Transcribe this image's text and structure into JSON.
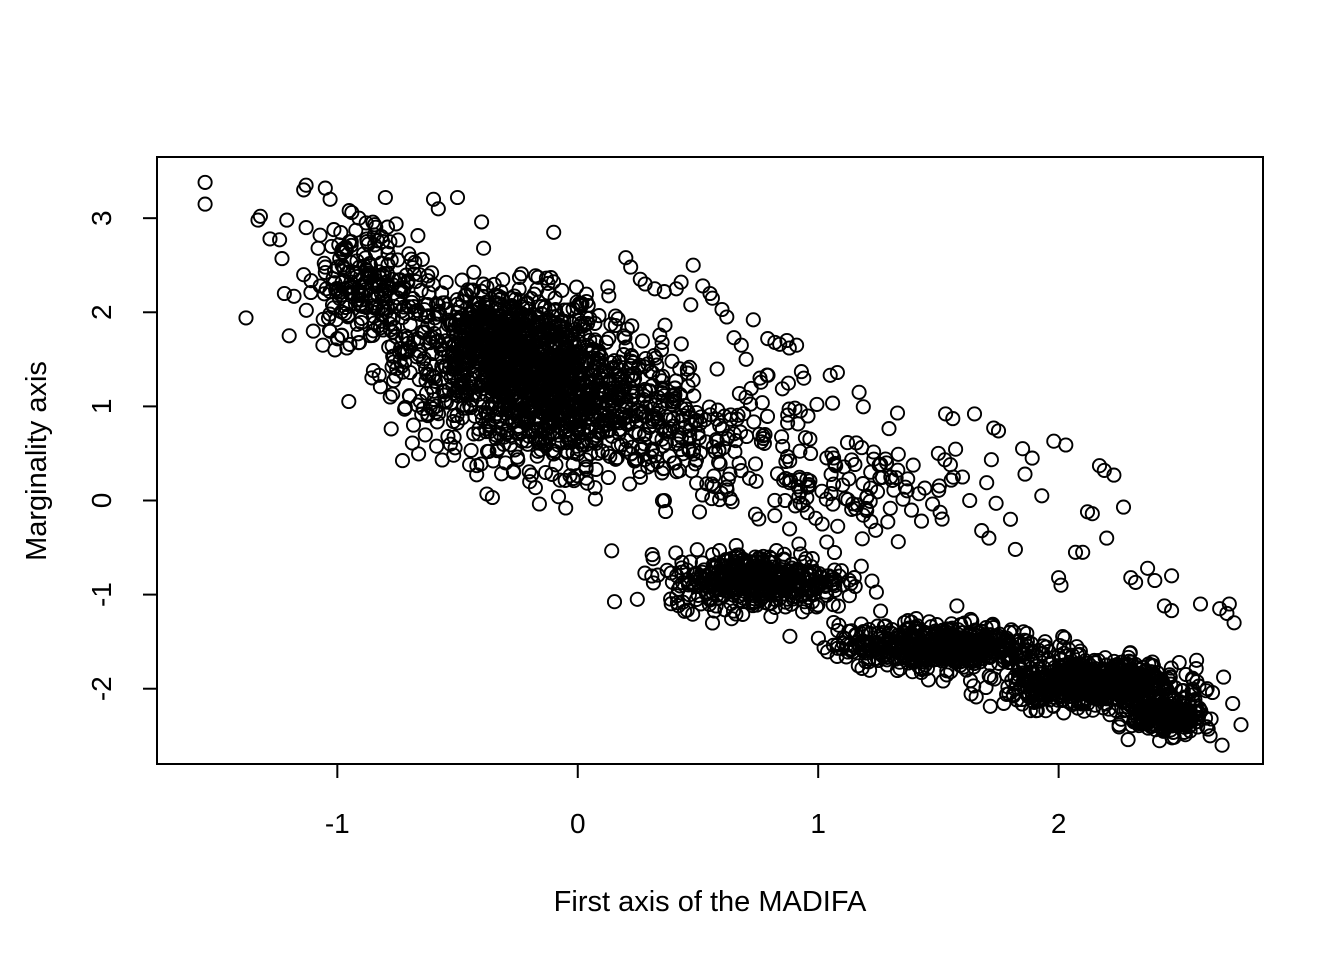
{
  "chart_data": {
    "type": "scatter",
    "title": "",
    "xlabel": "First axis of the MADIFA",
    "ylabel": "Marginality axis",
    "xlim": [
      -1.75,
      2.85
    ],
    "ylim": [
      -2.8,
      3.65
    ],
    "xticks": [
      -1,
      0,
      1,
      2
    ],
    "xtick_labels": [
      "-1",
      "0",
      "1",
      "2"
    ],
    "yticks": [
      -2,
      -1,
      0,
      1,
      2,
      3
    ],
    "ytick_labels": [
      "-2",
      "-1",
      "0",
      "1",
      "2",
      "3"
    ],
    "grid": false,
    "legend": "none",
    "marker": "open-circle",
    "color": "#000000",
    "points": [
      [
        -1.55,
        3.38
      ],
      [
        -1.55,
        3.15
      ],
      [
        -1.38,
        1.94
      ],
      [
        -1.33,
        2.98
      ],
      [
        -1.32,
        3.02
      ],
      [
        -1.28,
        2.78
      ],
      [
        -1.24,
        2.77
      ],
      [
        -1.23,
        2.57
      ],
      [
        -1.22,
        2.2
      ],
      [
        -1.21,
        2.98
      ],
      [
        -1.2,
        1.75
      ],
      [
        -1.18,
        2.17
      ],
      [
        -1.14,
        3.3
      ],
      [
        -1.13,
        3.35
      ],
      [
        -1.13,
        2.9
      ],
      [
        -1.11,
        2.21
      ],
      [
        -1.1,
        1.8
      ],
      [
        -1.08,
        2.68
      ],
      [
        -1.06,
        1.65
      ],
      [
        -1.05,
        2.48
      ],
      [
        -1.05,
        3.32
      ],
      [
        -1.03,
        2.22
      ],
      [
        -1.03,
        3.2
      ],
      [
        -1.02,
        2.08
      ],
      [
        -1.01,
        1.6
      ],
      [
        -1.0,
        1.72
      ],
      [
        -0.98,
        2.5
      ],
      [
        -0.96,
        1.62
      ],
      [
        -0.95,
        2.75
      ],
      [
        -0.94,
        3.06
      ],
      [
        -0.91,
        3.0
      ],
      [
        -0.88,
        2.95
      ],
      [
        -0.85,
        1.38
      ],
      [
        -0.8,
        3.22
      ],
      [
        -0.78,
        1.1
      ],
      [
        -0.72,
        0.97
      ],
      [
        -0.6,
        3.2
      ],
      [
        -0.58,
        3.1
      ],
      [
        -0.54,
        0.68
      ],
      [
        -0.51,
        0.56
      ],
      [
        -0.5,
        3.22
      ],
      [
        -0.45,
        0.38
      ],
      [
        -0.4,
        2.96
      ],
      [
        -0.3,
        0.4
      ],
      [
        -0.2,
        0.2
      ],
      [
        -0.1,
        2.85
      ],
      [
        -0.08,
        0.04
      ],
      [
        -0.05,
        -0.08
      ],
      [
        0.2,
        2.58
      ],
      [
        0.22,
        2.48
      ],
      [
        0.26,
        2.35
      ],
      [
        0.28,
        2.3
      ],
      [
        0.32,
        2.25
      ],
      [
        0.36,
        2.22
      ],
      [
        0.41,
        2.25
      ],
      [
        0.43,
        2.32
      ],
      [
        0.47,
        2.08
      ],
      [
        0.48,
        2.5
      ],
      [
        0.52,
        2.28
      ],
      [
        0.55,
        2.2
      ],
      [
        0.56,
        2.15
      ],
      [
        0.6,
        2.03
      ],
      [
        0.62,
        1.95
      ],
      [
        0.65,
        1.73
      ],
      [
        0.68,
        1.65
      ],
      [
        0.7,
        1.5
      ],
      [
        0.73,
        1.92
      ],
      [
        0.79,
        1.72
      ],
      [
        0.82,
        1.68
      ],
      [
        0.84,
        1.66
      ],
      [
        0.87,
        1.7
      ],
      [
        0.88,
        1.62
      ],
      [
        0.91,
        1.65
      ],
      [
        0.93,
        1.37
      ],
      [
        0.94,
        1.3
      ],
      [
        1.05,
        1.33
      ],
      [
        1.08,
        1.36
      ],
      [
        1.17,
        1.15
      ],
      [
        1.33,
        0.93
      ],
      [
        1.53,
        0.92
      ],
      [
        1.56,
        0.87
      ],
      [
        1.65,
        0.92
      ],
      [
        1.73,
        0.77
      ],
      [
        1.75,
        0.74
      ],
      [
        1.5,
        0.5
      ],
      [
        1.55,
        0.38
      ],
      [
        1.6,
        0.25
      ],
      [
        1.63,
        0.0
      ],
      [
        1.68,
        -0.32
      ],
      [
        1.71,
        -0.4
      ],
      [
        1.74,
        -0.03
      ],
      [
        1.8,
        -0.2
      ],
      [
        1.82,
        -0.52
      ],
      [
        1.85,
        0.55
      ],
      [
        1.86,
        0.28
      ],
      [
        1.89,
        0.45
      ],
      [
        1.93,
        0.05
      ],
      [
        1.98,
        0.63
      ],
      [
        2.0,
        -0.82
      ],
      [
        2.01,
        -0.9
      ],
      [
        2.03,
        0.59
      ],
      [
        2.07,
        -0.55
      ],
      [
        2.1,
        -0.55
      ],
      [
        2.12,
        -0.12
      ],
      [
        2.14,
        -0.14
      ],
      [
        2.17,
        0.37
      ],
      [
        2.19,
        0.32
      ],
      [
        2.2,
        -0.4
      ],
      [
        2.23,
        0.27
      ],
      [
        2.27,
        -0.07
      ],
      [
        2.3,
        -0.82
      ],
      [
        2.32,
        -0.87
      ],
      [
        2.37,
        -0.72
      ],
      [
        2.4,
        -0.85
      ],
      [
        2.44,
        -1.12
      ],
      [
        2.47,
        -1.17
      ],
      [
        2.47,
        -0.8
      ],
      [
        2.59,
        -1.1
      ],
      [
        2.67,
        -1.15
      ],
      [
        2.7,
        -1.2
      ],
      [
        2.71,
        -1.1
      ],
      [
        2.73,
        -1.3
      ],
      [
        2.68,
        -2.6
      ],
      [
        2.63,
        -2.5
      ]
    ],
    "dense_regions": [
      {
        "x_center": -0.3,
        "y_center": 1.6,
        "x_spread": 0.35,
        "y_spread": 0.55,
        "n": 900
      },
      {
        "x_center": -0.05,
        "y_center": 1.0,
        "x_spread": 0.4,
        "y_spread": 0.55,
        "n": 700
      },
      {
        "x_center": 0.75,
        "y_center": -0.85,
        "x_spread": 0.3,
        "y_spread": 0.25,
        "n": 450
      },
      {
        "x_center": 1.5,
        "y_center": -1.55,
        "x_spread": 0.35,
        "y_spread": 0.2,
        "n": 550
      },
      {
        "x_center": 2.15,
        "y_center": -1.95,
        "x_spread": 0.3,
        "y_spread": 0.2,
        "n": 650
      },
      {
        "x_center": 2.45,
        "y_center": -2.3,
        "x_spread": 0.12,
        "y_spread": 0.15,
        "n": 250
      },
      {
        "x_center": 0.6,
        "y_center": 0.6,
        "x_spread": 0.45,
        "y_spread": 0.55,
        "n": 180
      },
      {
        "x_center": 1.2,
        "y_center": 0.1,
        "x_spread": 0.35,
        "y_spread": 0.4,
        "n": 90
      },
      {
        "x_center": -0.85,
        "y_center": 2.3,
        "x_spread": 0.2,
        "y_spread": 0.55,
        "n": 220
      }
    ]
  }
}
